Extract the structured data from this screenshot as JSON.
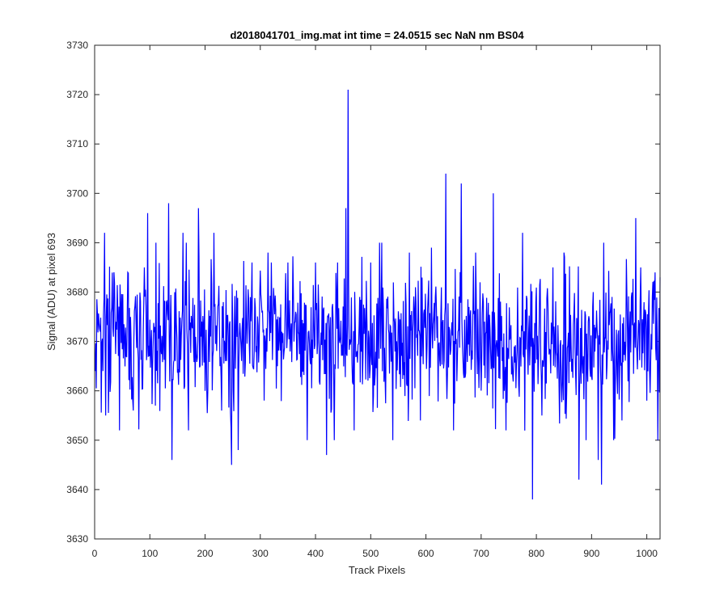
{
  "chart_data": {
    "type": "line",
    "title": "d2018041701_img.mat int time = 24.0515 sec  NaN nm BS04",
    "xlabel": "Track Pixels",
    "ylabel": "Signal (ADU) at pixel 693",
    "xlim": [
      0,
      1024
    ],
    "ylim": [
      3630,
      3730
    ],
    "xticks": [
      0,
      100,
      200,
      300,
      400,
      500,
      600,
      700,
      800,
      900,
      1000
    ],
    "yticks": [
      3630,
      3640,
      3650,
      3660,
      3670,
      3680,
      3690,
      3700,
      3710,
      3720,
      3730
    ],
    "grid": false,
    "box": true,
    "line_color": "#0000ff",
    "axis_color": "#262626",
    "series": [
      {
        "n_points": 1024,
        "baseline": 3671,
        "typical_range": [
          3652,
          3688
        ],
        "values_sampled": [
          {
            "x": 1,
            "y": 3664
          },
          {
            "x": 10,
            "y": 3672
          },
          {
            "x": 18,
            "y": 3692
          },
          {
            "x": 20,
            "y": 3655
          },
          {
            "x": 35,
            "y": 3684
          },
          {
            "x": 45,
            "y": 3652
          },
          {
            "x": 60,
            "y": 3684
          },
          {
            "x": 70,
            "y": 3656
          },
          {
            "x": 90,
            "y": 3685
          },
          {
            "x": 96,
            "y": 3696
          },
          {
            "x": 110,
            "y": 3657
          },
          {
            "x": 130,
            "y": 3678
          },
          {
            "x": 134,
            "y": 3698
          },
          {
            "x": 140,
            "y": 3646
          },
          {
            "x": 160,
            "y": 3692
          },
          {
            "x": 170,
            "y": 3652
          },
          {
            "x": 188,
            "y": 3697
          },
          {
            "x": 200,
            "y": 3660
          },
          {
            "x": 216,
            "y": 3692
          },
          {
            "x": 230,
            "y": 3656
          },
          {
            "x": 248,
            "y": 3645
          },
          {
            "x": 260,
            "y": 3648
          },
          {
            "x": 285,
            "y": 3686
          },
          {
            "x": 320,
            "y": 3686
          },
          {
            "x": 350,
            "y": 3686
          },
          {
            "x": 385,
            "y": 3650
          },
          {
            "x": 400,
            "y": 3686
          },
          {
            "x": 420,
            "y": 3647
          },
          {
            "x": 440,
            "y": 3686
          },
          {
            "x": 455,
            "y": 3697
          },
          {
            "x": 459,
            "y": 3721
          },
          {
            "x": 470,
            "y": 3652
          },
          {
            "x": 500,
            "y": 3686
          },
          {
            "x": 520,
            "y": 3690
          },
          {
            "x": 540,
            "y": 3650
          },
          {
            "x": 570,
            "y": 3688
          },
          {
            "x": 590,
            "y": 3654
          },
          {
            "x": 610,
            "y": 3689
          },
          {
            "x": 636,
            "y": 3704
          },
          {
            "x": 650,
            "y": 3652
          },
          {
            "x": 664,
            "y": 3702
          },
          {
            "x": 690,
            "y": 3688
          },
          {
            "x": 722,
            "y": 3700
          },
          {
            "x": 745,
            "y": 3652
          },
          {
            "x": 775,
            "y": 3692
          },
          {
            "x": 793,
            "y": 3638
          },
          {
            "x": 810,
            "y": 3655
          },
          {
            "x": 830,
            "y": 3685
          },
          {
            "x": 850,
            "y": 3688
          },
          {
            "x": 877,
            "y": 3642
          },
          {
            "x": 890,
            "y": 3650
          },
          {
            "x": 912,
            "y": 3646
          },
          {
            "x": 918,
            "y": 3641
          },
          {
            "x": 940,
            "y": 3650
          },
          {
            "x": 955,
            "y": 3654
          },
          {
            "x": 980,
            "y": 3695
          },
          {
            "x": 1000,
            "y": 3658
          },
          {
            "x": 1010,
            "y": 3679
          },
          {
            "x": 1020,
            "y": 3650
          },
          {
            "x": 1024,
            "y": 3683
          }
        ]
      }
    ]
  }
}
